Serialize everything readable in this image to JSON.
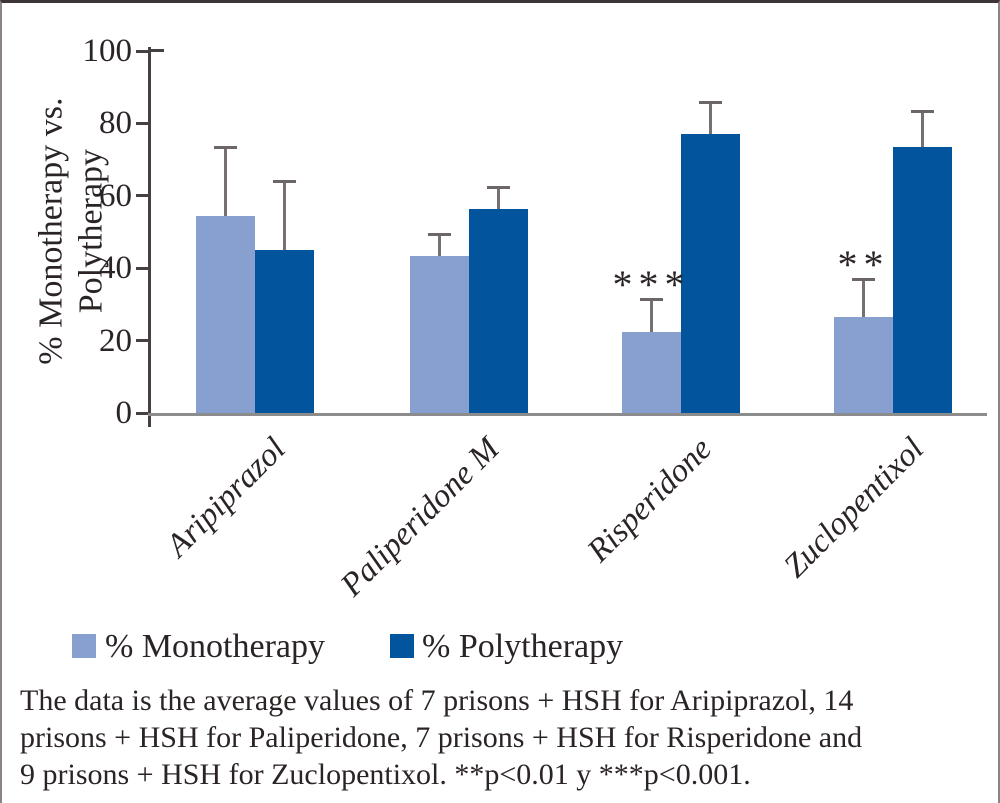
{
  "chart_data": {
    "type": "bar",
    "title": "",
    "ylabel": "% Monotherapy vs. Polytherapy",
    "ylabel_lines": [
      "% Monotherapy vs.",
      "Polytherapy"
    ],
    "xlabel": "",
    "ylim": [
      0,
      100
    ],
    "yticks": [
      0,
      20,
      40,
      60,
      80,
      100
    ],
    "grid": false,
    "legend_position": "bottom",
    "categories": [
      "Aripiprazol",
      "Paliperidone M",
      "Risperidone",
      "Zuclopentixol"
    ],
    "series": [
      {
        "name": "% Monotherapy",
        "color": "#88A0CF",
        "values": [
          54.5,
          43.5,
          22.5,
          26.5
        ],
        "error_top": [
          73.5,
          49.5,
          31.5,
          37
        ]
      },
      {
        "name": "% Polytherapy",
        "color": "#02549C",
        "values": [
          45,
          56.3,
          77,
          73.5
        ],
        "error_top": [
          64,
          62.3,
          86,
          83.5
        ]
      }
    ],
    "significance": [
      "",
      "",
      "***",
      "**"
    ],
    "error_bar_color": "#767070"
  },
  "legend": {
    "items": [
      {
        "label": "% Monotherapy",
        "color": "#88A0CF"
      },
      {
        "label": "% Polytherapy",
        "color": "#02549C"
      }
    ]
  },
  "caption": {
    "lines": [
      "The data is the average values of 7 prisons + HSH for Aripiprazol, 14",
      "prisons + HSH for Paliperidone, 7 prisons + HSH for Risperidone and",
      "9 prisons + HSH for Zuclopentixol. **p<0.01 y ***p<0.001."
    ]
  }
}
